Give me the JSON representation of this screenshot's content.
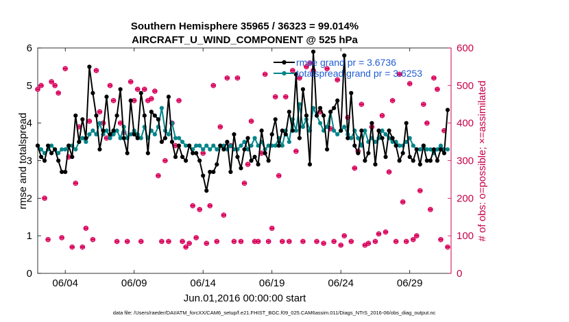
{
  "colors": {
    "rmse": "#000000",
    "totalspread": "#00858a",
    "obs_axis": "#c8004a",
    "possible_marker": "#d8005a",
    "assimilated_marker": "#d8005a",
    "legend_text": "#1f5bd6",
    "background": "#ffffff"
  },
  "chart_data": {
    "type": "line",
    "title_line1": "Southern Hemisphere 35965 / 36323 = 99.014%",
    "title_line2": "AIRCRAFT_U_WIND_COMPONENT @ 525 hPa",
    "xlabel": "Jun.01,2016 00:00:00 start",
    "ylabel_left": "rmse and totalspread",
    "ylabel_right": "# of obs: o=possible; ×=assimilated",
    "footnote": "data file: /Users/raeder/DAI/ATM_forcXX/CAM6_setup/f.e21.FHIST_BGC.f09_025.CAM6assim.011/Diags_NTrS_2016-06/obs_diag_output.nc",
    "xlim": [
      1,
      31
    ],
    "ylim_left": [
      0,
      6
    ],
    "ylim_right": [
      0,
      600
    ],
    "x_ticks": [
      3,
      8,
      13,
      18,
      23,
      28
    ],
    "x_tick_labels": [
      "06/04",
      "06/09",
      "06/14",
      "06/19",
      "06/24",
      "06/29"
    ],
    "y_left_ticks": [
      0,
      1,
      2,
      3,
      4,
      5,
      6
    ],
    "y_left_tick_labels": [
      "0",
      "1",
      "2",
      "3",
      "4",
      "5",
      "6"
    ],
    "y_right_ticks": [
      0,
      100,
      200,
      300,
      400,
      500,
      600
    ],
    "y_right_tick_labels": [
      "0",
      "100",
      "200",
      "300",
      "400",
      "500",
      "600"
    ],
    "x": [
      1.0,
      1.25,
      1.5,
      1.75,
      2.0,
      2.25,
      2.5,
      2.75,
      3.0,
      3.25,
      3.5,
      3.75,
      4.0,
      4.25,
      4.5,
      4.75,
      5.0,
      5.25,
      5.5,
      5.75,
      6.0,
      6.25,
      6.5,
      6.75,
      7.0,
      7.25,
      7.5,
      7.75,
      8.0,
      8.25,
      8.5,
      8.75,
      9.0,
      9.25,
      9.5,
      9.75,
      10.0,
      10.25,
      10.5,
      10.75,
      11.0,
      11.25,
      11.5,
      11.75,
      12.0,
      12.25,
      12.5,
      12.75,
      13.0,
      13.25,
      13.5,
      13.75,
      14.0,
      14.25,
      14.5,
      14.75,
      15.0,
      15.25,
      15.5,
      15.75,
      16.0,
      16.25,
      16.5,
      16.75,
      17.0,
      17.25,
      17.5,
      17.75,
      18.0,
      18.25,
      18.5,
      18.75,
      19.0,
      19.25,
      19.5,
      19.75,
      20.0,
      20.25,
      20.5,
      20.75,
      21.0,
      21.25,
      21.5,
      21.75,
      22.0,
      22.25,
      22.5,
      22.75,
      23.0,
      23.25,
      23.5,
      23.75,
      24.0,
      24.25,
      24.5,
      24.75,
      25.0,
      25.25,
      25.5,
      25.75,
      26.0,
      26.25,
      26.5,
      26.75,
      27.0,
      27.25,
      27.5,
      27.75,
      28.0,
      28.25,
      28.5,
      28.75,
      29.0,
      29.25,
      29.5,
      29.75,
      30.0,
      30.25,
      30.5,
      30.75
    ],
    "series": [
      {
        "name": "rmse",
        "legend_label": "rmse grand pr = 3.6736",
        "values": [
          3.4,
          3.1,
          3.0,
          3.4,
          3.2,
          3.3,
          3.0,
          2.7,
          2.7,
          3.4,
          3.1,
          4.2,
          3.5,
          4.1,
          3.6,
          5.5,
          4.8,
          4.2,
          3.3,
          3.8,
          4.7,
          3.7,
          3.8,
          4.2,
          4.9,
          3.6,
          3.2,
          4.6,
          3.7,
          3.6,
          4.8,
          4.2,
          3.2,
          4.3,
          4.2,
          4.1,
          3.5,
          3.6,
          4.7,
          3.5,
          3.1,
          3.4,
          3.1,
          3.0,
          3.4,
          3.2,
          3.2,
          3.0,
          2.6,
          2.2,
          2.7,
          2.7,
          2.9,
          3.4,
          3.3,
          3.5,
          2.7,
          3.7,
          3.1,
          2.8,
          3.3,
          3.6,
          3.0,
          3.1,
          2.9,
          3.8,
          3.2,
          3.0,
          3.7,
          4.1,
          3.4,
          3.8,
          3.7,
          4.3,
          3.8,
          5.3,
          3.6,
          4.9,
          4.2,
          2.9,
          5.9,
          4.2,
          4.4,
          4.2,
          3.3,
          4.3,
          4.4,
          4.6,
          3.8,
          5.8,
          3.6,
          4.8,
          3.4,
          3.2,
          3.8,
          3.0,
          3.2,
          4.0,
          2.9,
          3.8,
          3.6,
          3.1,
          3.8,
          3.6,
          3.4,
          3.0,
          3.2,
          4.0,
          3.1,
          3.0,
          3.3,
          2.9,
          3.4,
          3.0,
          3.0,
          3.3,
          3.0,
          3.3,
          3.2,
          4.35
        ]
      },
      {
        "name": "totalspread",
        "legend_label": "totalspread grand pr = 3.6253",
        "values": [
          3.4,
          3.3,
          3.2,
          3.3,
          3.4,
          3.3,
          3.2,
          3.3,
          3.3,
          3.4,
          3.4,
          3.3,
          3.5,
          3.6,
          3.5,
          3.7,
          3.8,
          3.7,
          4.0,
          3.7,
          3.8,
          3.6,
          3.7,
          3.8,
          3.6,
          3.9,
          3.6,
          3.7,
          3.8,
          3.7,
          3.6,
          3.9,
          3.6,
          3.8,
          3.7,
          3.9,
          4.4,
          3.8,
          3.7,
          4.0,
          3.6,
          3.6,
          3.5,
          3.4,
          3.4,
          3.3,
          3.4,
          3.4,
          3.3,
          3.4,
          3.3,
          3.4,
          3.3,
          3.4,
          3.4,
          3.3,
          3.4,
          3.3,
          3.3,
          3.4,
          3.5,
          3.3,
          3.4,
          3.6,
          3.4,
          3.5,
          3.3,
          3.4,
          3.4,
          3.4,
          3.6,
          3.4,
          3.8,
          3.5,
          4.1,
          3.8,
          4.5,
          3.9,
          4.1,
          3.8,
          4.4,
          4.2,
          4.0,
          3.8,
          3.9,
          4.3,
          3.8,
          3.7,
          3.8,
          3.9,
          3.7,
          3.6,
          3.8,
          3.6,
          3.4,
          3.8,
          3.5,
          3.6,
          3.5,
          3.6,
          3.8,
          3.7,
          3.6,
          3.5,
          3.5,
          3.4,
          3.4,
          3.5,
          3.6,
          3.4,
          3.3,
          3.3,
          3.4,
          3.3,
          3.3,
          3.2,
          3.3,
          3.4,
          3.3,
          3.3
        ]
      }
    ],
    "obs_possible": [
      490,
      500,
      200,
      90,
      510,
      500,
      480,
      95,
      545,
      310,
      70,
      240,
      390,
      70,
      120,
      405,
      90,
      540,
      430,
      400,
      360,
      500,
      460,
      85,
      400,
      375,
      85,
      510,
      460,
      490,
      85,
      490,
      460,
      465,
      485,
      260,
      85,
      300,
      85,
      400,
      340,
      460,
      85,
      70,
      80,
      180,
      95,
      170,
      320,
      80,
      180,
      500,
      85,
      390,
      155,
      520,
      340,
      85,
      520,
      85,
      240,
      290,
      405,
      85,
      85,
      320,
      530,
      85,
      120,
      470,
      260,
      85,
      470,
      85,
      540,
      325,
      520,
      85,
      550,
      560,
      540,
      85,
      430,
      80,
      545,
      385,
      85,
      515,
      75,
      100,
      415,
      85,
      280,
      325,
      450,
      75,
      80,
      390,
      85,
      105,
      420,
      110,
      270,
      460,
      85,
      530,
      190,
      85,
      505,
      90,
      100,
      220,
      450,
      400,
      170,
      520,
      490,
      90,
      380,
      70
    ]
  }
}
